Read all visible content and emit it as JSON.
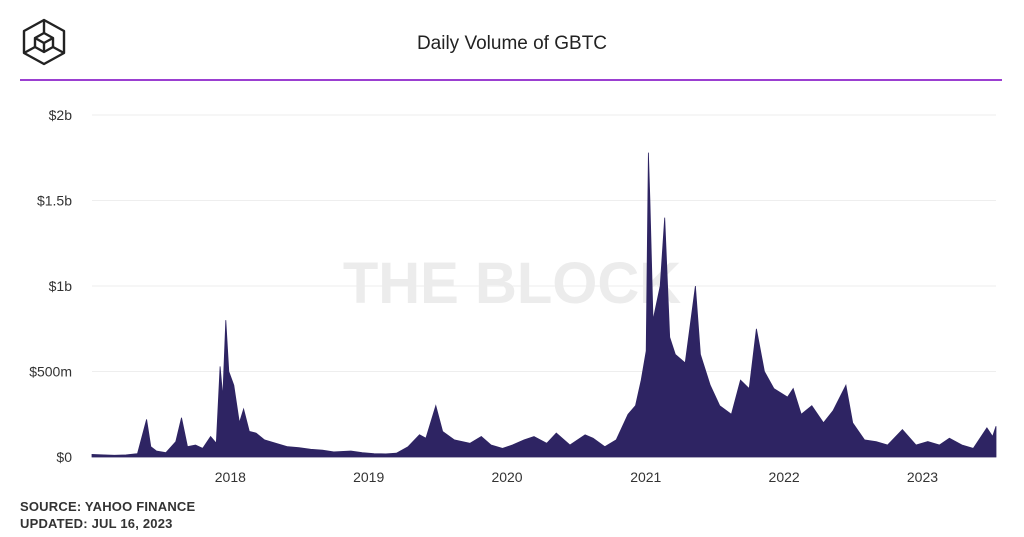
{
  "header": {
    "logo_name": "the-block-cube-logo",
    "accent_color": "#9b3fd1"
  },
  "watermark": "THE BLOCK",
  "footer": {
    "source": "SOURCE: YAHOO FINANCE",
    "updated": "UPDATED: JUL 16, 2023"
  },
  "chart_data": {
    "type": "area",
    "title": "Daily Volume of GBTC",
    "xlabel": "",
    "ylabel": "",
    "bar_color": "#2e2463",
    "grid": true,
    "xlim": [
      "2017-01-01",
      "2023-07-14"
    ],
    "ylim": [
      0,
      2000000000
    ],
    "yticks": [
      {
        "value": 0,
        "label": "$0"
      },
      {
        "value": 500000000,
        "label": "$500m"
      },
      {
        "value": 1000000000,
        "label": "$1b"
      },
      {
        "value": 1500000000,
        "label": "$1.5b"
      },
      {
        "value": 2000000000,
        "label": "$2b"
      }
    ],
    "xticks": [
      {
        "value": "2018-01-01",
        "label": "2018"
      },
      {
        "value": "2019-01-01",
        "label": "2019"
      },
      {
        "value": "2020-01-01",
        "label": "2020"
      },
      {
        "value": "2021-01-01",
        "label": "2021"
      },
      {
        "value": "2022-01-01",
        "label": "2022"
      },
      {
        "value": "2023-01-01",
        "label": "2023"
      }
    ],
    "series": [
      {
        "values": [
          [
            "2017-01-01",
            15000000
          ],
          [
            "2017-02-01",
            12000000
          ],
          [
            "2017-03-01",
            10000000
          ],
          [
            "2017-04-01",
            12000000
          ],
          [
            "2017-05-01",
            20000000
          ],
          [
            "2017-05-25",
            220000000
          ],
          [
            "2017-06-05",
            60000000
          ],
          [
            "2017-06-20",
            35000000
          ],
          [
            "2017-07-15",
            25000000
          ],
          [
            "2017-08-10",
            90000000
          ],
          [
            "2017-08-25",
            230000000
          ],
          [
            "2017-09-10",
            60000000
          ],
          [
            "2017-10-01",
            70000000
          ],
          [
            "2017-10-20",
            50000000
          ],
          [
            "2017-11-10",
            120000000
          ],
          [
            "2017-11-25",
            80000000
          ],
          [
            "2017-12-05",
            530000000
          ],
          [
            "2017-12-12",
            350000000
          ],
          [
            "2017-12-20",
            800000000
          ],
          [
            "2017-12-28",
            500000000
          ],
          [
            "2018-01-10",
            420000000
          ],
          [
            "2018-01-25",
            200000000
          ],
          [
            "2018-02-05",
            280000000
          ],
          [
            "2018-02-20",
            150000000
          ],
          [
            "2018-03-10",
            140000000
          ],
          [
            "2018-04-01",
            100000000
          ],
          [
            "2018-05-01",
            80000000
          ],
          [
            "2018-06-01",
            60000000
          ],
          [
            "2018-07-01",
            55000000
          ],
          [
            "2018-08-01",
            45000000
          ],
          [
            "2018-09-01",
            40000000
          ],
          [
            "2018-10-01",
            30000000
          ],
          [
            "2018-11-15",
            35000000
          ],
          [
            "2018-12-15",
            25000000
          ],
          [
            "2019-01-15",
            20000000
          ],
          [
            "2019-02-15",
            18000000
          ],
          [
            "2019-03-15",
            22000000
          ],
          [
            "2019-04-15",
            60000000
          ],
          [
            "2019-05-15",
            130000000
          ],
          [
            "2019-06-01",
            110000000
          ],
          [
            "2019-06-27",
            300000000
          ],
          [
            "2019-07-15",
            150000000
          ],
          [
            "2019-08-15",
            100000000
          ],
          [
            "2019-09-25",
            80000000
          ],
          [
            "2019-10-25",
            120000000
          ],
          [
            "2019-11-20",
            70000000
          ],
          [
            "2019-12-20",
            50000000
          ],
          [
            "2020-01-15",
            70000000
          ],
          [
            "2020-02-15",
            100000000
          ],
          [
            "2020-03-12",
            120000000
          ],
          [
            "2020-04-15",
            80000000
          ],
          [
            "2020-05-10",
            140000000
          ],
          [
            "2020-06-15",
            70000000
          ],
          [
            "2020-07-25",
            130000000
          ],
          [
            "2020-08-15",
            110000000
          ],
          [
            "2020-09-15",
            60000000
          ],
          [
            "2020-10-15",
            100000000
          ],
          [
            "2020-11-15",
            250000000
          ],
          [
            "2020-12-05",
            300000000
          ],
          [
            "2020-12-20",
            450000000
          ],
          [
            "2021-01-02",
            620000000
          ],
          [
            "2021-01-08",
            1780000000
          ],
          [
            "2021-01-12",
            1500000000
          ],
          [
            "2021-01-20",
            800000000
          ],
          [
            "2021-02-08",
            1000000000
          ],
          [
            "2021-02-20",
            1400000000
          ],
          [
            "2021-03-05",
            700000000
          ],
          [
            "2021-03-20",
            600000000
          ],
          [
            "2021-04-15",
            550000000
          ],
          [
            "2021-05-12",
            1000000000
          ],
          [
            "2021-05-25",
            600000000
          ],
          [
            "2021-06-20",
            420000000
          ],
          [
            "2021-07-15",
            300000000
          ],
          [
            "2021-08-15",
            250000000
          ],
          [
            "2021-09-08",
            450000000
          ],
          [
            "2021-10-01",
            400000000
          ],
          [
            "2021-10-20",
            750000000
          ],
          [
            "2021-11-10",
            500000000
          ],
          [
            "2021-12-05",
            400000000
          ],
          [
            "2022-01-10",
            350000000
          ],
          [
            "2022-01-25",
            400000000
          ],
          [
            "2022-02-15",
            250000000
          ],
          [
            "2022-03-15",
            300000000
          ],
          [
            "2022-04-15",
            200000000
          ],
          [
            "2022-05-10",
            270000000
          ],
          [
            "2022-06-13",
            420000000
          ],
          [
            "2022-07-01",
            200000000
          ],
          [
            "2022-08-01",
            100000000
          ],
          [
            "2022-09-01",
            90000000
          ],
          [
            "2022-10-01",
            70000000
          ],
          [
            "2022-11-09",
            160000000
          ],
          [
            "2022-12-15",
            70000000
          ],
          [
            "2023-01-15",
            90000000
          ],
          [
            "2023-02-15",
            70000000
          ],
          [
            "2023-03-13",
            110000000
          ],
          [
            "2023-04-15",
            70000000
          ],
          [
            "2023-05-15",
            50000000
          ],
          [
            "2023-06-20",
            170000000
          ],
          [
            "2023-07-05",
            120000000
          ],
          [
            "2023-07-14",
            180000000
          ]
        ]
      }
    ]
  }
}
